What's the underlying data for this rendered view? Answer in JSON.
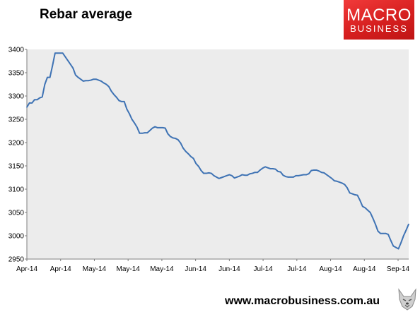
{
  "title": "Rebar average",
  "brand": {
    "line1": "MACRO",
    "line2": "BUSINESS"
  },
  "footer": "www.macrobusiness.com.au",
  "colors": {
    "series": "#3f73b4",
    "plot_bg": "#ececec",
    "brand_red": "#e42323"
  },
  "icons": {
    "corner": "wolf-icon"
  },
  "chart_data": {
    "type": "line",
    "title": "Rebar average",
    "xlabel": "",
    "ylabel": "",
    "ylim": [
      2950,
      3400
    ],
    "y_ticks": [
      2950,
      3000,
      3050,
      3100,
      3150,
      3200,
      3250,
      3300,
      3350,
      3400
    ],
    "x_tick_labels": [
      "Apr-14",
      "Apr-14",
      "May-14",
      "May-14",
      "May-14",
      "Jun-14",
      "Jun-14",
      "Jul-14",
      "Jul-14",
      "Aug-14",
      "Aug-14",
      "Sep-14"
    ],
    "grid": false,
    "series": [
      {
        "values": [
          3276,
          3285,
          3285,
          3292,
          3292,
          3296,
          3298,
          3325,
          3340,
          3340,
          3365,
          3392,
          3392,
          3392,
          3392,
          3384,
          3376,
          3368,
          3360,
          3345,
          3340,
          3336,
          3332,
          3333,
          3333,
          3334,
          3336,
          3336,
          3334,
          3332,
          3328,
          3325,
          3320,
          3310,
          3303,
          3297,
          3290,
          3288,
          3288,
          3272,
          3262,
          3250,
          3242,
          3233,
          3220,
          3220,
          3221,
          3221,
          3226,
          3231,
          3234,
          3232,
          3232,
          3232,
          3231,
          3219,
          3213,
          3210,
          3209,
          3206,
          3199,
          3188,
          3181,
          3176,
          3170,
          3166,
          3155,
          3149,
          3140,
          3134,
          3134,
          3135,
          3134,
          3129,
          3126,
          3123,
          3125,
          3127,
          3129,
          3131,
          3129,
          3124,
          3126,
          3128,
          3131,
          3130,
          3130,
          3133,
          3134,
          3136,
          3136,
          3141,
          3145,
          3148,
          3146,
          3144,
          3144,
          3143,
          3138,
          3137,
          3130,
          3127,
          3126,
          3126,
          3126,
          3129,
          3129,
          3130,
          3131,
          3131,
          3133,
          3140,
          3141,
          3141,
          3139,
          3136,
          3135,
          3131,
          3127,
          3123,
          3118,
          3117,
          3115,
          3113,
          3110,
          3103,
          3092,
          3090,
          3088,
          3087,
          3076,
          3063,
          3060,
          3055,
          3050,
          3038,
          3025,
          3010,
          3005,
          3005,
          3005,
          3003,
          2990,
          2978,
          2975,
          2972,
          2985,
          3000,
          3012,
          3025
        ]
      }
    ]
  }
}
